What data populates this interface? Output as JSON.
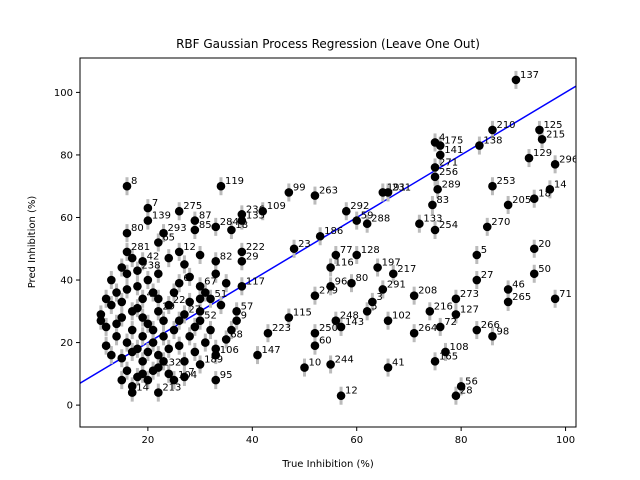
{
  "chart_data": {
    "type": "scatter",
    "title": "RBF Gaussian Process Regression (Leave One Out)",
    "xlabel": "True Inhibition (%)",
    "ylabel": "Pred Inhibition (%)",
    "xlim": [
      7,
      102
    ],
    "ylim": [
      -7,
      111
    ],
    "xticks": [
      20,
      40,
      60,
      80,
      100
    ],
    "yticks": [
      0,
      20,
      40,
      60,
      80,
      100
    ],
    "grid": false,
    "legend": "none",
    "identity_line": {
      "from": [
        7,
        7
      ],
      "to": [
        102,
        102
      ],
      "color": "#0000ff"
    },
    "marker_color": "#000000",
    "errorbar_color": "#bbbbbb",
    "points": [
      {
        "id": "137",
        "x": 90.5,
        "y": 104
      },
      {
        "id": "125",
        "x": 95,
        "y": 88
      },
      {
        "id": "215",
        "x": 95.5,
        "y": 85
      },
      {
        "id": "210",
        "x": 86,
        "y": 88
      },
      {
        "id": "296",
        "x": 98,
        "y": 77
      },
      {
        "id": "129",
        "x": 93,
        "y": 79
      },
      {
        "id": "138",
        "x": 83.5,
        "y": 83
      },
      {
        "id": "4",
        "x": 75,
        "y": 84
      },
      {
        "id": "175",
        "x": 76,
        "y": 83
      },
      {
        "id": "141",
        "x": 76,
        "y": 80
      },
      {
        "id": "271",
        "x": 75,
        "y": 76
      },
      {
        "id": "256",
        "x": 75,
        "y": 73
      },
      {
        "id": "289",
        "x": 75.5,
        "y": 69
      },
      {
        "id": "83",
        "x": 74.5,
        "y": 64
      },
      {
        "id": "133",
        "x": 72,
        "y": 58
      },
      {
        "id": "254",
        "x": 75,
        "y": 56
      },
      {
        "id": "14",
        "x": 97,
        "y": 69
      },
      {
        "id": "18",
        "x": 94,
        "y": 66
      },
      {
        "id": "253",
        "x": 86,
        "y": 70
      },
      {
        "id": "205",
        "x": 89,
        "y": 64
      },
      {
        "id": "270",
        "x": 85,
        "y": 57
      },
      {
        "id": "20",
        "x": 94,
        "y": 50
      },
      {
        "id": "50",
        "x": 94,
        "y": 42
      },
      {
        "id": "5",
        "x": 83,
        "y": 48
      },
      {
        "id": "27",
        "x": 83,
        "y": 40
      },
      {
        "id": "46",
        "x": 89,
        "y": 37
      },
      {
        "id": "71",
        "x": 98,
        "y": 34
      },
      {
        "id": "265",
        "x": 89,
        "y": 33
      },
      {
        "id": "273",
        "x": 79,
        "y": 34
      },
      {
        "id": "127",
        "x": 79,
        "y": 29
      },
      {
        "id": "266",
        "x": 83,
        "y": 24
      },
      {
        "id": "98",
        "x": 86,
        "y": 22
      },
      {
        "id": "108",
        "x": 77,
        "y": 17
      },
      {
        "id": "165",
        "x": 75,
        "y": 14
      },
      {
        "id": "56",
        "x": 80,
        "y": 6
      },
      {
        "id": "28",
        "x": 79,
        "y": 3
      },
      {
        "id": "41",
        "x": 66,
        "y": 12
      },
      {
        "id": "12",
        "x": 57,
        "y": 3
      },
      {
        "id": "244",
        "x": 55,
        "y": 13
      },
      {
        "id": "264",
        "x": 71,
        "y": 23
      },
      {
        "id": "72",
        "x": 76,
        "y": 25
      },
      {
        "id": "216",
        "x": 74,
        "y": 30
      },
      {
        "id": "208",
        "x": 71,
        "y": 35
      },
      {
        "id": "102",
        "x": 66,
        "y": 27
      },
      {
        "id": "191",
        "x": 65,
        "y": 68
      },
      {
        "id": "231",
        "x": 66,
        "y": 68
      },
      {
        "id": "292",
        "x": 58,
        "y": 62
      },
      {
        "id": "59",
        "x": 60,
        "y": 59
      },
      {
        "id": "288",
        "x": 62,
        "y": 58
      },
      {
        "id": "263",
        "x": 52,
        "y": 67
      },
      {
        "id": "186",
        "x": 53,
        "y": 54
      },
      {
        "id": "77",
        "x": 56,
        "y": 48
      },
      {
        "id": "128",
        "x": 60,
        "y": 48
      },
      {
        "id": "116",
        "x": 55,
        "y": 44
      },
      {
        "id": "197",
        "x": 64,
        "y": 44
      },
      {
        "id": "217",
        "x": 67,
        "y": 42
      },
      {
        "id": "96",
        "x": 55,
        "y": 38
      },
      {
        "id": "80",
        "x": 59,
        "y": 39
      },
      {
        "id": "279",
        "x": 52,
        "y": 35
      },
      {
        "id": "291",
        "x": 65,
        "y": 37
      },
      {
        "id": "3",
        "x": 63,
        "y": 33
      },
      {
        "id": "5",
        "x": 62,
        "y": 30
      },
      {
        "id": "248",
        "x": 56,
        "y": 27
      },
      {
        "id": "143",
        "x": 57,
        "y": 25
      },
      {
        "id": "115",
        "x": 47,
        "y": 28
      },
      {
        "id": "223",
        "x": 43,
        "y": 23
      },
      {
        "id": "250",
        "x": 52,
        "y": 23
      },
      {
        "id": "60",
        "x": 52,
        "y": 19
      },
      {
        "id": "147",
        "x": 41,
        "y": 16
      },
      {
        "id": "10",
        "x": 50,
        "y": 12
      },
      {
        "id": "99",
        "x": 47,
        "y": 68
      },
      {
        "id": "109",
        "x": 42,
        "y": 62
      },
      {
        "id": "23",
        "x": 48,
        "y": 50
      },
      {
        "id": "119",
        "x": 34,
        "y": 70
      },
      {
        "id": "236",
        "x": 38,
        "y": 61
      },
      {
        "id": "135",
        "x": 38,
        "y": 59
      },
      {
        "id": "18",
        "x": 36,
        "y": 56
      },
      {
        "id": "284",
        "x": 33,
        "y": 57
      },
      {
        "id": "87",
        "x": 29,
        "y": 59
      },
      {
        "id": "275",
        "x": 26,
        "y": 62
      },
      {
        "id": "8",
        "x": 16,
        "y": 70
      },
      {
        "id": "7",
        "x": 20,
        "y": 63
      },
      {
        "id": "139",
        "x": 20,
        "y": 59
      },
      {
        "id": "80",
        "x": 16,
        "y": 55
      },
      {
        "id": "293",
        "x": 23,
        "y": 55
      },
      {
        "id": "85",
        "x": 29,
        "y": 56
      },
      {
        "id": "222",
        "x": 38,
        "y": 49
      },
      {
        "id": "29",
        "x": 38,
        "y": 46
      },
      {
        "id": "82",
        "x": 33,
        "y": 46
      },
      {
        "id": "117",
        "x": 38,
        "y": 38
      },
      {
        "id": "67",
        "x": 30,
        "y": 38
      },
      {
        "id": "51",
        "x": 32,
        "y": 34
      },
      {
        "id": "57",
        "x": 37,
        "y": 30
      },
      {
        "id": "52",
        "x": 30,
        "y": 27
      },
      {
        "id": "9",
        "x": 37,
        "y": 27
      },
      {
        "id": "68",
        "x": 35,
        "y": 21
      },
      {
        "id": "106",
        "x": 33,
        "y": 16
      },
      {
        "id": "189",
        "x": 30,
        "y": 13
      },
      {
        "id": "95",
        "x": 33,
        "y": 8
      },
      {
        "id": "7",
        "x": 27,
        "y": 9
      },
      {
        "id": "104",
        "x": 25,
        "y": 8
      },
      {
        "id": "132",
        "x": 22,
        "y": 12
      },
      {
        "id": "213",
        "x": 22,
        "y": 4
      },
      {
        "id": "14",
        "x": 17,
        "y": 4
      },
      {
        "id": "238",
        "x": 18,
        "y": 43
      },
      {
        "id": "281",
        "x": 16,
        "y": 49
      },
      {
        "id": "42",
        "x": 19,
        "y": 46
      },
      {
        "id": "12",
        "x": 26,
        "y": 49
      },
      {
        "id": "65",
        "x": 22,
        "y": 52
      },
      {
        "id": "6",
        "x": 26,
        "y": 39
      },
      {
        "id": "22",
        "x": 24,
        "y": 32
      },
      {
        "id": "29",
        "x": 22,
        "y": 30
      },
      {
        "id": "27",
        "x": 27,
        "y": 29
      },
      {
        "id": "41",
        "x": 19,
        "y": 34
      },
      {
        "id": "",
        "x": 11,
        "y": 29
      },
      {
        "id": "",
        "x": 12,
        "y": 25
      },
      {
        "id": "",
        "x": 13,
        "y": 32
      },
      {
        "id": "",
        "x": 14,
        "y": 22
      },
      {
        "id": "",
        "x": 15,
        "y": 28
      },
      {
        "id": "",
        "x": 12,
        "y": 19
      },
      {
        "id": "",
        "x": 16,
        "y": 20
      },
      {
        "id": "",
        "x": 17,
        "y": 24
      },
      {
        "id": "",
        "x": 15,
        "y": 15
      },
      {
        "id": "",
        "x": 18,
        "y": 18
      },
      {
        "id": "",
        "x": 19,
        "y": 22
      },
      {
        "id": "",
        "x": 20,
        "y": 26
      },
      {
        "id": "",
        "x": 21,
        "y": 20
      },
      {
        "id": "",
        "x": 22,
        "y": 16
      },
      {
        "id": "",
        "x": 23,
        "y": 22
      },
      {
        "id": "",
        "x": 24,
        "y": 18
      },
      {
        "id": "",
        "x": 16,
        "y": 11
      },
      {
        "id": "",
        "x": 18,
        "y": 9
      },
      {
        "id": "",
        "x": 20,
        "y": 8
      },
      {
        "id": "",
        "x": 17,
        "y": 30
      },
      {
        "id": "",
        "x": 14,
        "y": 36
      },
      {
        "id": "",
        "x": 18,
        "y": 38
      },
      {
        "id": "",
        "x": 21,
        "y": 36
      },
      {
        "id": "",
        "x": 16,
        "y": 42
      },
      {
        "id": "",
        "x": 13,
        "y": 40
      },
      {
        "id": "",
        "x": 20,
        "y": 40
      },
      {
        "id": "",
        "x": 25,
        "y": 24
      },
      {
        "id": "",
        "x": 26,
        "y": 19
      },
      {
        "id": "",
        "x": 28,
        "y": 22
      },
      {
        "id": "",
        "x": 29,
        "y": 17
      },
      {
        "id": "",
        "x": 27,
        "y": 14
      },
      {
        "id": "",
        "x": 31,
        "y": 20
      },
      {
        "id": "",
        "x": 23,
        "y": 27
      },
      {
        "id": "",
        "x": 19,
        "y": 14
      },
      {
        "id": "",
        "x": 21,
        "y": 11
      },
      {
        "id": "",
        "x": 24,
        "y": 10
      },
      {
        "id": "",
        "x": 17,
        "y": 17
      },
      {
        "id": "",
        "x": 15,
        "y": 33
      },
      {
        "id": "",
        "x": 22,
        "y": 34
      },
      {
        "id": "",
        "x": 25,
        "y": 36
      },
      {
        "id": "",
        "x": 28,
        "y": 33
      },
      {
        "id": "",
        "x": 30,
        "y": 30
      },
      {
        "id": "",
        "x": 32,
        "y": 24
      },
      {
        "id": "",
        "x": 12,
        "y": 34
      },
      {
        "id": "",
        "x": 11,
        "y": 27
      },
      {
        "id": "",
        "x": 14,
        "y": 26
      },
      {
        "id": "",
        "x": 16,
        "y": 37
      },
      {
        "id": "",
        "x": 19,
        "y": 28
      },
      {
        "id": "",
        "x": 21,
        "y": 24
      },
      {
        "id": "",
        "x": 18,
        "y": 31
      },
      {
        "id": "",
        "x": 20,
        "y": 17
      },
      {
        "id": "",
        "x": 23,
        "y": 14
      },
      {
        "id": "",
        "x": 26,
        "y": 27
      },
      {
        "id": "",
        "x": 29,
        "y": 25
      },
      {
        "id": "",
        "x": 31,
        "y": 36
      },
      {
        "id": "",
        "x": 34,
        "y": 32
      },
      {
        "id": "",
        "x": 27,
        "y": 45
      },
      {
        "id": "",
        "x": 24,
        "y": 47
      },
      {
        "id": "",
        "x": 30,
        "y": 48
      },
      {
        "id": "",
        "x": 28,
        "y": 41
      },
      {
        "id": "",
        "x": 33,
        "y": 42
      },
      {
        "id": "",
        "x": 35,
        "y": 39
      },
      {
        "id": "",
        "x": 22,
        "y": 42
      },
      {
        "id": "",
        "x": 17,
        "y": 47
      },
      {
        "id": "",
        "x": 15,
        "y": 44
      },
      {
        "id": "",
        "x": 13,
        "y": 16
      },
      {
        "id": "",
        "x": 15,
        "y": 8
      },
      {
        "id": "",
        "x": 17,
        "y": 6
      },
      {
        "id": "",
        "x": 19,
        "y": 10
      },
      {
        "id": "",
        "x": 33,
        "y": 18
      },
      {
        "id": "",
        "x": 36,
        "y": 24
      },
      {
        "id": "",
        "x": 30,
        "y": 34
      }
    ]
  }
}
